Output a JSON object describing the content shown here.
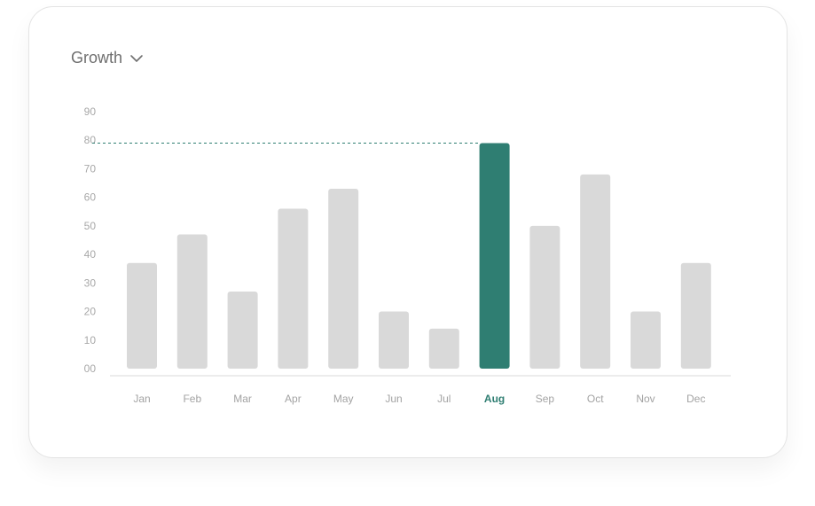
{
  "header": {
    "metric_label": "Growth",
    "chevron_icon": "chevron-down-icon"
  },
  "colors": {
    "bar": "#d9d9d9",
    "highlight": "#2f7e72",
    "axis_text": "#a8a8a8",
    "baseline": "#e6e6e6"
  },
  "chart_data": {
    "type": "bar",
    "title": "",
    "xlabel": "",
    "ylabel": "",
    "categories": [
      "Jan",
      "Feb",
      "Mar",
      "Apr",
      "May",
      "Jun",
      "Jul",
      "Aug",
      "Sep",
      "Oct",
      "Nov",
      "Dec"
    ],
    "values": [
      37,
      47,
      27,
      56,
      63,
      20,
      14,
      79,
      50,
      68,
      20,
      37
    ],
    "ylim": [
      0,
      90
    ],
    "yticks": [
      "00",
      "10",
      "20",
      "30",
      "40",
      "50",
      "60",
      "70",
      "80",
      "90"
    ],
    "highlight_category": "Aug",
    "reference_line": {
      "value": 79,
      "style": "dashed"
    },
    "grid": false,
    "legend": "none"
  }
}
